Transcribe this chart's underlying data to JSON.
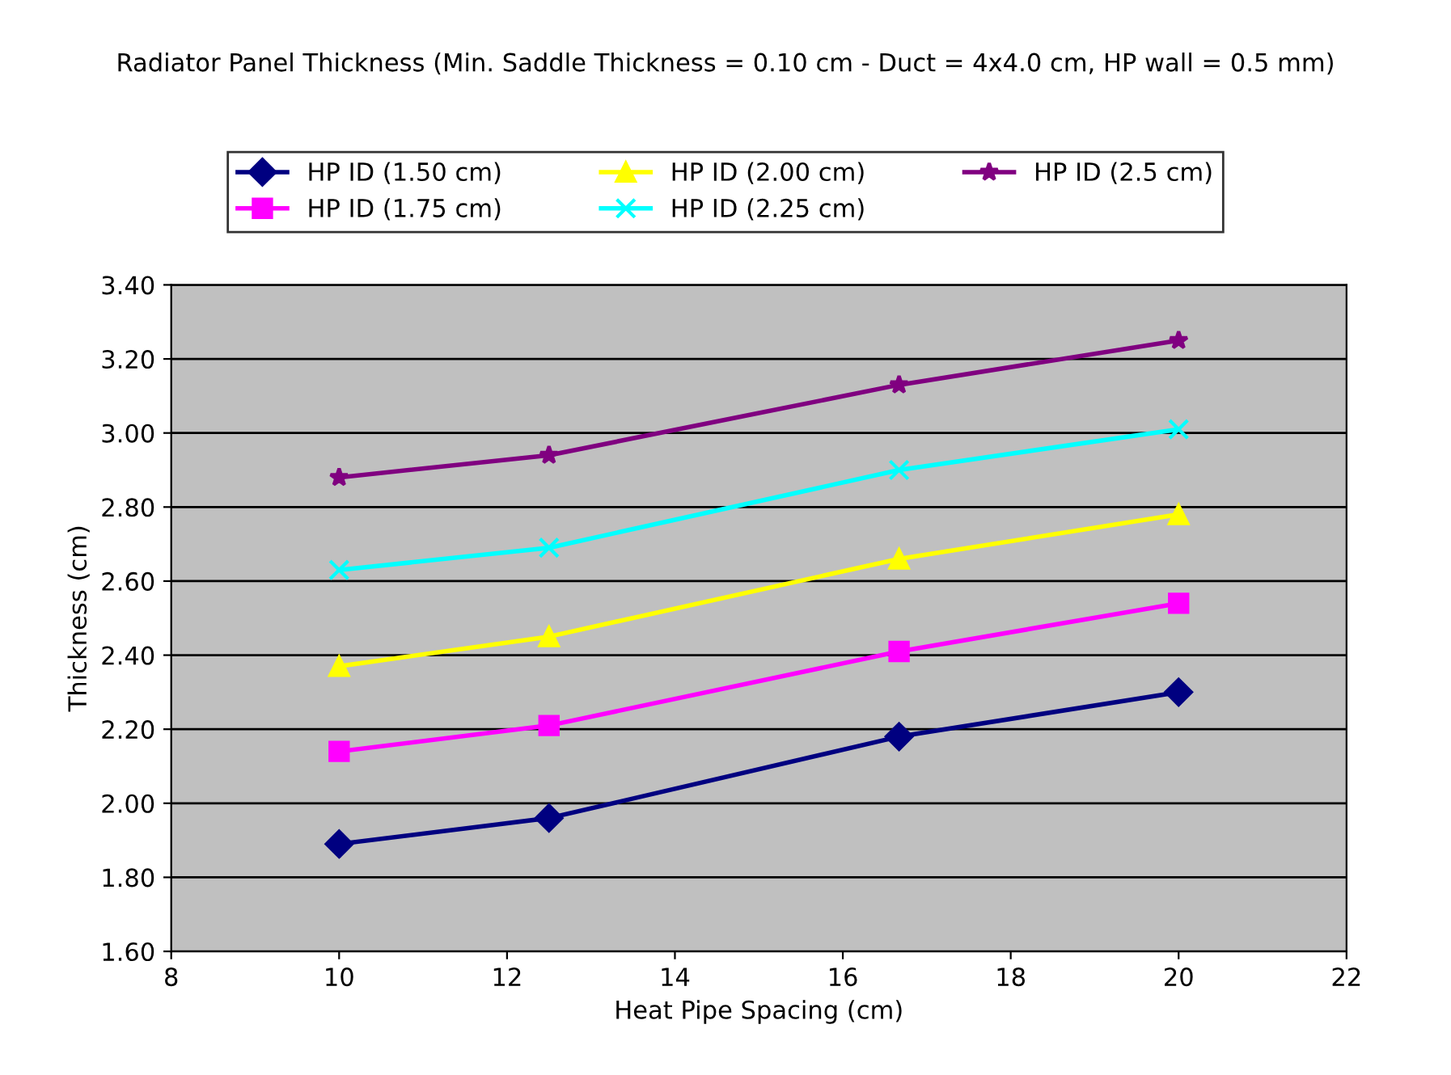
{
  "chart_data": {
    "type": "line",
    "title": "Radiator Panel Thickness (Min. Saddle Thickness = 0.10 cm - Duct = 4x4.0 cm, HP wall = 0.5 mm)",
    "xlabel": "Heat Pipe Spacing (cm)",
    "ylabel": "Thickness (cm)",
    "x": [
      10,
      12.5,
      16.67,
      20
    ],
    "series": [
      {
        "name": "HP ID (1.50 cm)",
        "color": "#000080",
        "marker": "diamond",
        "values": [
          1.89,
          1.96,
          2.18,
          2.3
        ]
      },
      {
        "name": "HP ID (1.75 cm)",
        "color": "#ff00ff",
        "marker": "square",
        "values": [
          2.14,
          2.21,
          2.41,
          2.54
        ]
      },
      {
        "name": "HP ID (2.00 cm)",
        "color": "#ffff00",
        "marker": "triangle",
        "values": [
          2.37,
          2.45,
          2.66,
          2.78
        ]
      },
      {
        "name": "HP ID (2.25 cm)",
        "color": "#00ffff",
        "marker": "cross",
        "values": [
          2.63,
          2.69,
          2.9,
          3.01
        ]
      },
      {
        "name": "HP ID (2.5 cm)",
        "color": "#800080",
        "marker": "star",
        "values": [
          2.88,
          2.94,
          3.13,
          3.25
        ]
      }
    ],
    "xlim": [
      8,
      22
    ],
    "xticks": [
      8,
      10,
      12,
      14,
      16,
      18,
      20,
      22
    ],
    "ylim": [
      1.6,
      3.4
    ],
    "yticks": [
      {
        "value": 1.6,
        "label": "1.60"
      },
      {
        "value": 1.8,
        "label": "1.80"
      },
      {
        "value": 2.0,
        "label": "2.00"
      },
      {
        "value": 2.2,
        "label": "2.20"
      },
      {
        "value": 2.4,
        "label": "2.40"
      },
      {
        "value": 2.6,
        "label": "2.60"
      },
      {
        "value": 2.8,
        "label": "2.80"
      },
      {
        "value": 3.0,
        "label": "3.00"
      },
      {
        "value": 3.2,
        "label": "3.20"
      },
      {
        "value": 3.4,
        "label": "3.40"
      }
    ],
    "grid": "y",
    "legend": "top",
    "line_style": "solid"
  }
}
